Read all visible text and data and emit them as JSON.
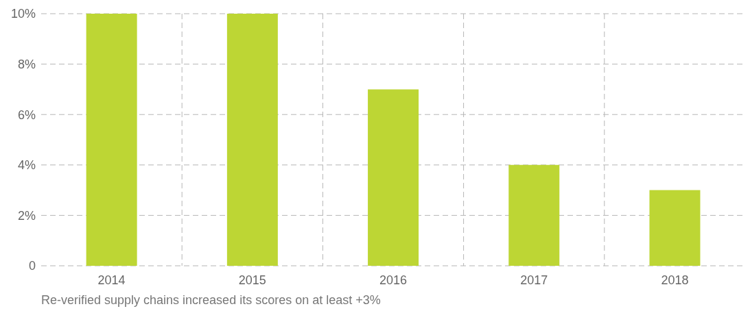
{
  "chart_data": {
    "type": "bar",
    "categories": [
      "2014",
      "2015",
      "2016",
      "2017",
      "2018"
    ],
    "values": [
      10,
      10,
      7,
      4,
      3
    ],
    "color": "#bdd634",
    "ylim": [
      0,
      10
    ],
    "yticks": [
      0,
      {
        "value": 2,
        "label": "2%"
      },
      {
        "value": 4,
        "label": "4%"
      },
      {
        "value": 6,
        "label": "6%"
      },
      {
        "value": 8,
        "label": "8%"
      },
      {
        "value": 10,
        "label": "10%"
      }
    ],
    "grid": true,
    "annotations": [
      "Re-verified supply chains increased its scores on at least +3%"
    ]
  }
}
